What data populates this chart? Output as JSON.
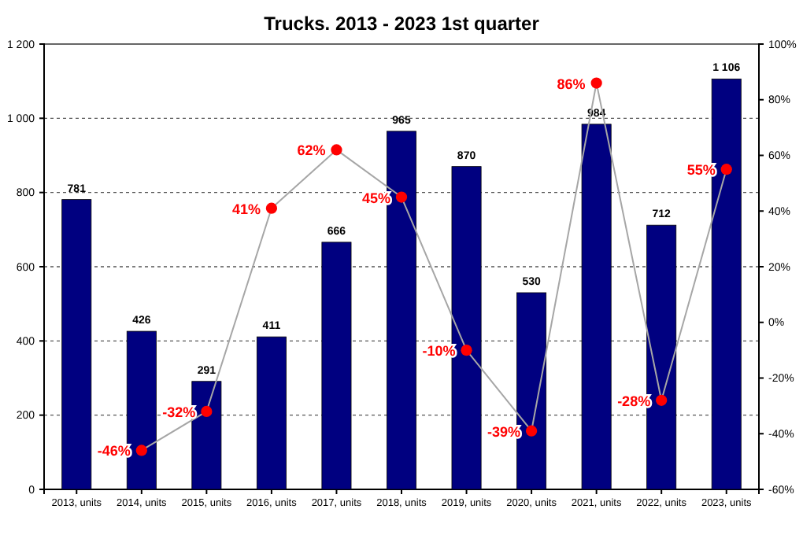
{
  "chart_data": {
    "type": "bar",
    "title": "Trucks. 2013 - 2023 1st quarter",
    "categories": [
      "2013, units",
      "2014, units",
      "2015, units",
      "2016, units",
      "2017, units",
      "2018, units",
      "2019, units",
      "2020, units",
      "2021, units",
      "2022, units",
      "2023, units"
    ],
    "series": [
      {
        "color": "#000080",
        "values": [
          781,
          426,
          291,
          411,
          666,
          965,
          870,
          530,
          984,
          712,
          1106
        ],
        "value_labels": [
          "781",
          "426",
          "291",
          "411",
          "666",
          "965",
          "870",
          "530",
          "984",
          "712",
          "1 106"
        ]
      },
      {
        "type": "line",
        "axis": "y2",
        "color": "#a6a6a6",
        "colors": [
          null,
          "#ff0000",
          "#ff0000",
          "#ff0000",
          "#ff0000",
          "#ff0000",
          "#ff0000",
          "#ff0000",
          "#ff0000",
          "#ff0000",
          "#ff0000"
        ],
        "marker": "circle",
        "values": [
          null,
          -46,
          -32,
          41,
          62,
          45,
          -10,
          -39,
          86,
          -28,
          55
        ],
        "value_labels": [
          null,
          "-46%",
          "-32%",
          "41%",
          "62%",
          "45%",
          "-10%",
          "-39%",
          "86%",
          "-28%",
          "55%"
        ]
      }
    ],
    "ylim": [
      0,
      1200
    ],
    "yticks": [
      0,
      200,
      400,
      600,
      800,
      {
        "value": 1000,
        "label": "1 000"
      },
      {
        "value": 1200,
        "label": "1 200"
      }
    ],
    "y2lim": [
      -60,
      100
    ],
    "y2ticks": [
      {
        "value": -60,
        "label": "-60%"
      },
      {
        "value": -40,
        "label": "-40%"
      },
      {
        "value": -20,
        "label": "-20%"
      },
      {
        "value": 0,
        "label": "0%"
      },
      {
        "value": 20,
        "label": "20%"
      },
      {
        "value": 40,
        "label": "40%"
      },
      {
        "value": 60,
        "label": "60%"
      },
      {
        "value": 80,
        "label": "80%"
      },
      {
        "value": 100,
        "label": "100%"
      }
    ],
    "grid": "y"
  }
}
